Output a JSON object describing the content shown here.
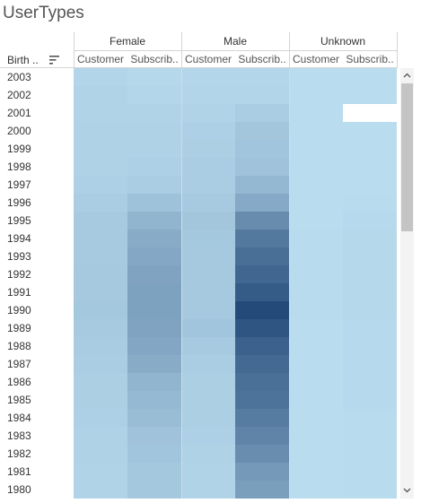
{
  "title": "UserTypes",
  "row_header": "Birth ..",
  "icons": {
    "sort": "sort-descending-icon",
    "scroll_up": "chevron-up-icon",
    "scroll_down": "chevron-down-icon"
  },
  "genders": [
    "Female",
    "Male",
    "Unknown"
  ],
  "user_types": [
    "Customer",
    "Subscrib.."
  ],
  "colors": {
    "low": "#b9dcef",
    "high": "#234a79"
  },
  "chart_data": {
    "type": "heatmap",
    "title": "UserTypes",
    "rows": [
      "2003",
      "2002",
      "2001",
      "2000",
      "1999",
      "1998",
      "1997",
      "1996",
      "1995",
      "1994",
      "1993",
      "1992",
      "1991",
      "1990",
      "1989",
      "1988",
      "1987",
      "1986",
      "1985",
      "1984",
      "1983",
      "1982",
      "1981",
      "1980"
    ],
    "columns": [
      {
        "gender": "Female",
        "user_type": "Customer"
      },
      {
        "gender": "Female",
        "user_type": "Subscriber"
      },
      {
        "gender": "Male",
        "user_type": "Customer"
      },
      {
        "gender": "Male",
        "user_type": "Subscriber"
      },
      {
        "gender": "Unknown",
        "user_type": "Customer"
      },
      {
        "gender": "Unknown",
        "user_type": "Subscriber"
      }
    ],
    "values": [
      [
        0.05,
        0.03,
        0.04,
        0.04,
        0.0,
        0.0
      ],
      [
        0.06,
        0.04,
        0.05,
        0.05,
        0.0,
        0.0
      ],
      [
        0.06,
        0.06,
        0.06,
        0.1,
        0.0,
        null
      ],
      [
        0.07,
        0.07,
        0.08,
        0.15,
        0.0,
        0.0
      ],
      [
        0.07,
        0.07,
        0.09,
        0.16,
        0.0,
        0.0
      ],
      [
        0.07,
        0.08,
        0.1,
        0.17,
        0.0,
        0.0
      ],
      [
        0.08,
        0.1,
        0.1,
        0.25,
        0.0,
        0.0
      ],
      [
        0.1,
        0.18,
        0.12,
        0.35,
        0.0,
        0.01
      ],
      [
        0.12,
        0.27,
        0.15,
        0.55,
        0.0,
        0.02
      ],
      [
        0.12,
        0.33,
        0.14,
        0.68,
        0.01,
        0.03
      ],
      [
        0.12,
        0.36,
        0.13,
        0.75,
        0.01,
        0.03
      ],
      [
        0.13,
        0.39,
        0.13,
        0.8,
        0.01,
        0.03
      ],
      [
        0.13,
        0.4,
        0.13,
        0.88,
        0.01,
        0.03
      ],
      [
        0.14,
        0.4,
        0.13,
        1.0,
        0.01,
        0.03
      ],
      [
        0.12,
        0.39,
        0.16,
        0.92,
        0.0,
        0.02
      ],
      [
        0.11,
        0.37,
        0.12,
        0.84,
        0.0,
        0.02
      ],
      [
        0.1,
        0.33,
        0.1,
        0.78,
        0.0,
        0.02
      ],
      [
        0.09,
        0.27,
        0.09,
        0.74,
        0.0,
        0.02
      ],
      [
        0.09,
        0.24,
        0.09,
        0.72,
        0.0,
        0.02
      ],
      [
        0.08,
        0.21,
        0.09,
        0.66,
        0.0,
        0.01
      ],
      [
        0.07,
        0.17,
        0.08,
        0.6,
        0.0,
        0.01
      ],
      [
        0.07,
        0.16,
        0.07,
        0.54,
        0.0,
        0.01
      ],
      [
        0.06,
        0.14,
        0.06,
        0.46,
        0.0,
        0.01
      ],
      [
        0.06,
        0.14,
        0.06,
        0.42,
        0.0,
        0.01
      ]
    ]
  }
}
